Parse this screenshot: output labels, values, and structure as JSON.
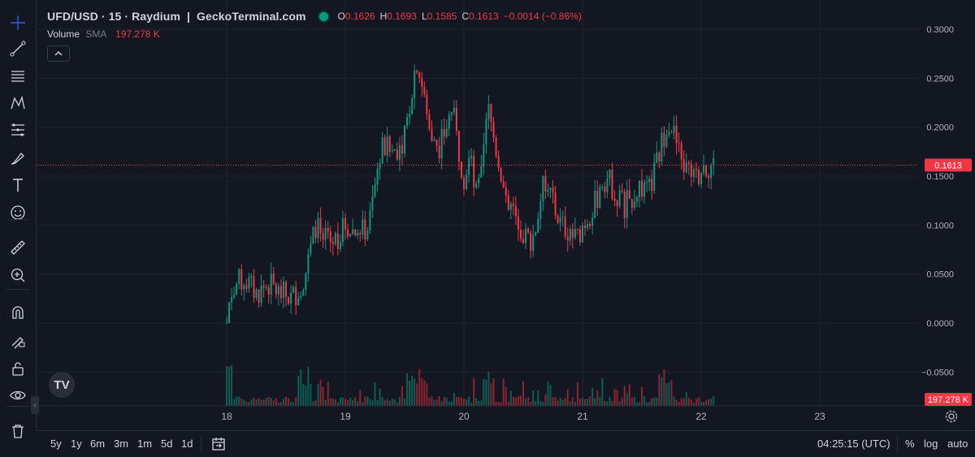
{
  "legend": {
    "symbol": "UFD/USD · 15 · Raydium",
    "separator": "|",
    "source": "GeckoTerminal.com",
    "ohlc": [
      {
        "k": "O",
        "v": "0.1626"
      },
      {
        "k": "H",
        "v": "0.1693"
      },
      {
        "k": "L",
        "v": "0.1585"
      },
      {
        "k": "C",
        "v": "0.1613"
      }
    ],
    "change": "−0.0014 (−0.86%)"
  },
  "volume_legend": {
    "title": "Volume",
    "study": "SMA",
    "value": "197.278 K"
  },
  "price_label": "0.1613",
  "volume_label": "197.278 K",
  "colors": {
    "bg": "#131722",
    "up": "#089981",
    "down": "#f23645",
    "grid": "#1f2330",
    "text": "#b2b5be"
  },
  "sidebar": {
    "tools": [
      "crosshair-icon",
      "trend-line-icon",
      "horizontal-lines-icon",
      "pattern-icon",
      "fib-icon",
      "brush-icon",
      "text-icon",
      "emoji-icon",
      "ruler-icon",
      "zoom-in-icon",
      "magnet-icon",
      "lock-drawing-icon",
      "unlock-icon",
      "eye-icon",
      "trash-icon"
    ]
  },
  "bottom_bar": {
    "ranges": [
      "5y",
      "1y",
      "6m",
      "3m",
      "1m",
      "5d",
      "1d"
    ],
    "clock": "04:25:15 (UTC)",
    "options": [
      "%",
      "log",
      "auto"
    ]
  },
  "chart_data": {
    "type": "candlestick",
    "title": "UFD/USD · 15 · Raydium | GeckoTerminal.com",
    "y_axis": {
      "min": -0.06,
      "max": 0.31,
      "ticks": [
        "0.3000",
        "0.2500",
        "0.2000",
        "0.1500",
        "0.1000",
        "0.0500",
        "0.0000",
        "−0.0500"
      ]
    },
    "x_axis": {
      "ticks": [
        "18",
        "19",
        "20",
        "21",
        "22",
        "23"
      ]
    },
    "last_price": 0.1613,
    "price_path": [
      [
        18.0,
        0.0
      ],
      [
        18.03,
        0.03
      ],
      [
        18.08,
        0.04
      ],
      [
        18.15,
        0.045
      ],
      [
        18.25,
        0.03
      ],
      [
        18.35,
        0.04
      ],
      [
        18.45,
        0.03
      ],
      [
        18.55,
        0.025
      ],
      [
        18.65,
        0.045
      ],
      [
        18.7,
        0.07
      ],
      [
        18.75,
        0.1
      ],
      [
        18.85,
        0.08
      ],
      [
        18.95,
        0.09
      ],
      [
        19.0,
        0.1
      ],
      [
        19.05,
        0.095
      ],
      [
        19.12,
        0.09
      ],
      [
        19.2,
        0.1
      ],
      [
        19.3,
        0.18
      ],
      [
        19.4,
        0.175
      ],
      [
        19.5,
        0.19
      ],
      [
        19.6,
        0.27
      ],
      [
        19.65,
        0.24
      ],
      [
        19.7,
        0.2
      ],
      [
        19.8,
        0.18
      ],
      [
        19.85,
        0.2
      ],
      [
        19.9,
        0.22
      ],
      [
        19.95,
        0.18
      ],
      [
        20.0,
        0.15
      ],
      [
        20.05,
        0.17
      ],
      [
        20.1,
        0.13
      ],
      [
        20.15,
        0.15
      ],
      [
        20.2,
        0.22
      ],
      [
        20.25,
        0.19
      ],
      [
        20.3,
        0.16
      ],
      [
        20.38,
        0.12
      ],
      [
        20.45,
        0.11
      ],
      [
        20.5,
        0.09
      ],
      [
        20.55,
        0.085
      ],
      [
        20.6,
        0.095
      ],
      [
        20.65,
        0.13
      ],
      [
        20.7,
        0.15
      ],
      [
        20.75,
        0.12
      ],
      [
        20.82,
        0.1
      ],
      [
        20.88,
        0.095
      ],
      [
        20.95,
        0.085
      ],
      [
        21.0,
        0.1
      ],
      [
        21.05,
        0.11
      ],
      [
        21.1,
        0.12
      ],
      [
        21.15,
        0.14
      ],
      [
        21.2,
        0.15
      ],
      [
        21.25,
        0.14
      ],
      [
        21.3,
        0.13
      ],
      [
        21.35,
        0.12
      ],
      [
        21.42,
        0.13
      ],
      [
        21.48,
        0.14
      ],
      [
        21.55,
        0.13
      ],
      [
        21.62,
        0.16
      ],
      [
        21.66,
        0.18
      ],
      [
        21.72,
        0.21
      ],
      [
        21.78,
        0.19
      ],
      [
        21.82,
        0.17
      ],
      [
        21.86,
        0.16
      ],
      [
        21.9,
        0.15
      ],
      [
        21.95,
        0.145
      ],
      [
        22.0,
        0.16
      ],
      [
        22.05,
        0.16
      ],
      [
        22.12,
        0.1613
      ]
    ],
    "volume": {
      "label": "197.278 K",
      "peak_day": 19.6
    }
  }
}
